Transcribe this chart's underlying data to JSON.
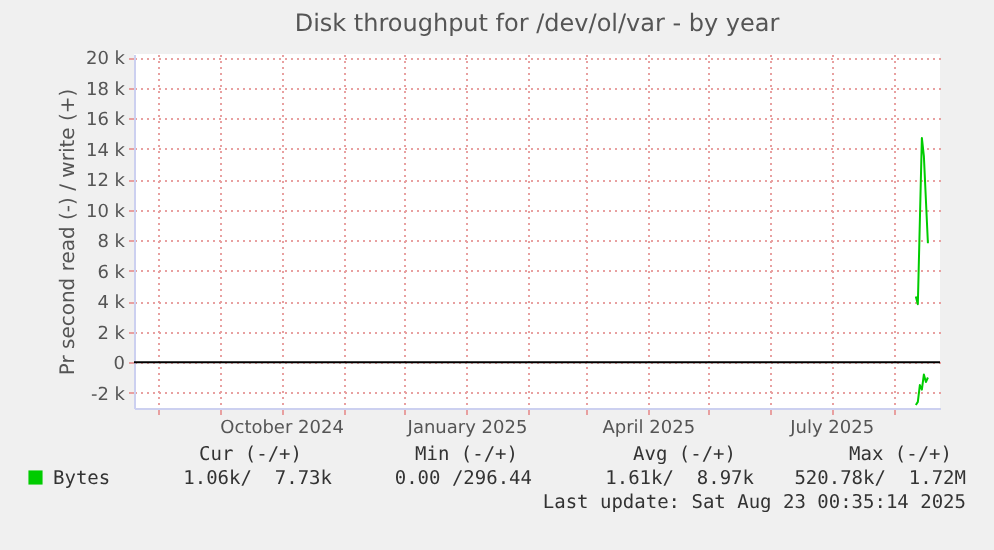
{
  "chart_data": {
    "type": "line",
    "title": "Disk throughput for /dev/ol/var - by year",
    "ylabel": "Pr second read (-) / write (+)",
    "xlim": [
      "2024-07-20",
      "2025-08-24"
    ],
    "ylim": [
      -3000,
      20200
    ],
    "xticks": [
      {
        "value": "2024-08-01",
        "label": null
      },
      {
        "value": "2024-09-01",
        "label": null
      },
      {
        "value": "2024-10-01",
        "label": "October 2024"
      },
      {
        "value": "2024-11-01",
        "label": null
      },
      {
        "value": "2024-12-01",
        "label": null
      },
      {
        "value": "2025-01-01",
        "label": "January 2025"
      },
      {
        "value": "2025-02-01",
        "label": null
      },
      {
        "value": "2025-03-01",
        "label": null
      },
      {
        "value": "2025-04-01",
        "label": "April 2025"
      },
      {
        "value": "2025-05-01",
        "label": null
      },
      {
        "value": "2025-06-01",
        "label": null
      },
      {
        "value": "2025-07-01",
        "label": "July 2025"
      },
      {
        "value": "2025-08-01",
        "label": null
      }
    ],
    "yticks": [
      {
        "value": -2000,
        "label": "-2 k"
      },
      0,
      {
        "value": 2000,
        "label": "2 k"
      },
      {
        "value": 4000,
        "label": "4 k"
      },
      {
        "value": 6000,
        "label": "6 k"
      },
      {
        "value": 8000,
        "label": "8 k"
      },
      {
        "value": 10000,
        "label": "10 k"
      },
      {
        "value": 12000,
        "label": "12 k"
      },
      {
        "value": 14000,
        "label": "14 k"
      },
      {
        "value": 16000,
        "label": "16 k"
      },
      {
        "value": 18000,
        "label": "18 k"
      },
      {
        "value": 20000,
        "label": "20 k"
      }
    ],
    "grid": true,
    "legend": "bottom left",
    "ref_lines": [
      {
        "axis": "y",
        "value": 0,
        "color": "#000000"
      }
    ],
    "series": [
      {
        "color": "#00cc00",
        "x": [
          "2025-08-12",
          "2025-08-13",
          "2025-08-14",
          "2025-08-15",
          "2025-08-16",
          "2025-08-17",
          "2025-08-18"
        ],
        "values": [
          -2800,
          -2600,
          -1500,
          -1800,
          -800,
          -1300,
          -1000
        ]
      },
      {
        "name": "Bytes",
        "color": "#00cc00",
        "x": [
          "2025-08-12",
          "2025-08-13",
          "2025-08-15",
          "2025-08-16",
          "2025-08-18"
        ],
        "values": [
          4300,
          3800,
          14700,
          13500,
          7800
        ]
      }
    ],
    "annotations": [
      "Cur (-/+)",
      "Min (-/+)",
      "Avg (-/+)",
      "Max (-/+)",
      "1.06k/  7.73k",
      "0.00 /296.44",
      "1.61k/  8.97k",
      "520.78k/  1.72M",
      "Last update: Sat Aug 23 00:35:14 2025"
    ]
  }
}
